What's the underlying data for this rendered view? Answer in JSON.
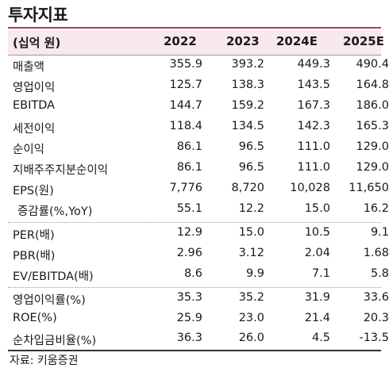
{
  "title": "투자지표",
  "header": {
    "unit": "(십억 원)",
    "years": [
      "2022",
      "2023",
      "2024E",
      "2025E"
    ]
  },
  "rows": [
    {
      "label": "매출액",
      "values": [
        "355.9",
        "393.2",
        "449.3",
        "490.4"
      ]
    },
    {
      "label": "영업이익",
      "values": [
        "125.7",
        "138.3",
        "143.5",
        "164.8"
      ]
    },
    {
      "label": "EBITDA",
      "values": [
        "144.7",
        "159.2",
        "167.3",
        "186.0"
      ]
    },
    {
      "label": "세전이익",
      "values": [
        "118.4",
        "134.5",
        "142.3",
        "165.3"
      ]
    },
    {
      "label": "순이익",
      "values": [
        "86.1",
        "96.5",
        "111.0",
        "129.0"
      ]
    },
    {
      "label": "지배주주지분순이익",
      "values": [
        "86.1",
        "96.5",
        "111.0",
        "129.0"
      ]
    },
    {
      "label": "EPS(원)",
      "values": [
        "7,776",
        "8,720",
        "10,028",
        "11,650"
      ]
    },
    {
      "label": "증감률(%,YoY)",
      "values": [
        "55.1",
        "12.2",
        "15.0",
        "16.2"
      ]
    },
    {
      "label": "PER(배)",
      "values": [
        "12.9",
        "15.0",
        "10.5",
        "9.1"
      ]
    },
    {
      "label": "PBR(배)",
      "values": [
        "2.96",
        "3.12",
        "2.04",
        "1.68"
      ]
    },
    {
      "label": "EV/EBITDA(배)",
      "values": [
        "8.6",
        "9.9",
        "7.1",
        "5.8"
      ]
    },
    {
      "label": "영업이익률(%)",
      "values": [
        "35.3",
        "35.2",
        "31.9",
        "33.6"
      ]
    },
    {
      "label": "ROE(%)",
      "values": [
        "25.9",
        "23.0",
        "21.4",
        "20.3"
      ]
    },
    {
      "label": "순차입금비율(%)",
      "values": [
        "36.3",
        "26.0",
        "4.5",
        "-13.5"
      ]
    }
  ],
  "source": "자료: 키움증권",
  "colors": {
    "accent": "#b23a62",
    "header_bg": "#f7e9ee"
  }
}
